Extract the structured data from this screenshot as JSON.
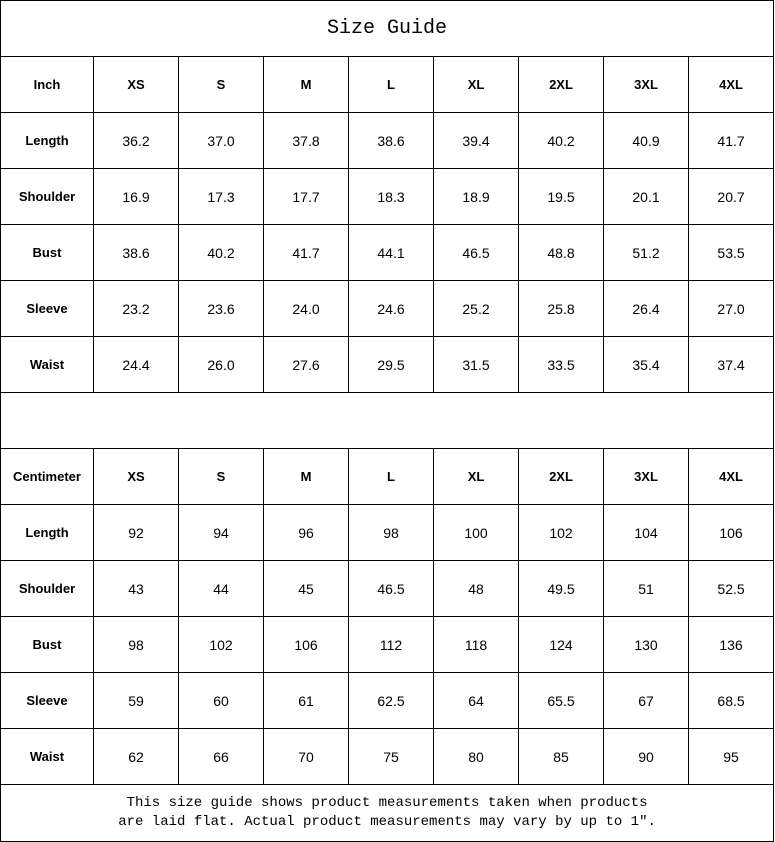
{
  "title": "Size Guide",
  "sizes": [
    "XS",
    "S",
    "M",
    "L",
    "XL",
    "2XL",
    "3XL",
    "4XL"
  ],
  "inch": {
    "unit_label": "Inch",
    "rows": [
      {
        "label": "Length",
        "values": [
          "36.2",
          "37.0",
          "37.8",
          "38.6",
          "39.4",
          "40.2",
          "40.9",
          "41.7"
        ]
      },
      {
        "label": "Shoulder",
        "values": [
          "16.9",
          "17.3",
          "17.7",
          "18.3",
          "18.9",
          "19.5",
          "20.1",
          "20.7"
        ]
      },
      {
        "label": "Bust",
        "values": [
          "38.6",
          "40.2",
          "41.7",
          "44.1",
          "46.5",
          "48.8",
          "51.2",
          "53.5"
        ]
      },
      {
        "label": "Sleeve",
        "values": [
          "23.2",
          "23.6",
          "24.0",
          "24.6",
          "25.2",
          "25.8",
          "26.4",
          "27.0"
        ]
      },
      {
        "label": "Waist",
        "values": [
          "24.4",
          "26.0",
          "27.6",
          "29.5",
          "31.5",
          "33.5",
          "35.4",
          "37.4"
        ]
      }
    ]
  },
  "cm": {
    "unit_label": "Centimeter",
    "rows": [
      {
        "label": "Length",
        "values": [
          "92",
          "94",
          "96",
          "98",
          "100",
          "102",
          "104",
          "106"
        ]
      },
      {
        "label": "Shoulder",
        "values": [
          "43",
          "44",
          "45",
          "46.5",
          "48",
          "49.5",
          "51",
          "52.5"
        ]
      },
      {
        "label": "Bust",
        "values": [
          "98",
          "102",
          "106",
          "112",
          "118",
          "124",
          "130",
          "136"
        ]
      },
      {
        "label": "Sleeve",
        "values": [
          "59",
          "60",
          "61",
          "62.5",
          "64",
          "65.5",
          "67",
          "68.5"
        ]
      },
      {
        "label": "Waist",
        "values": [
          "62",
          "66",
          "70",
          "75",
          "80",
          "85",
          "90",
          "95"
        ]
      }
    ]
  },
  "note": {
    "line1": "This size guide shows product measurements taken when products",
    "line2": "are laid flat. Actual product measurements may vary by up to 1″."
  }
}
